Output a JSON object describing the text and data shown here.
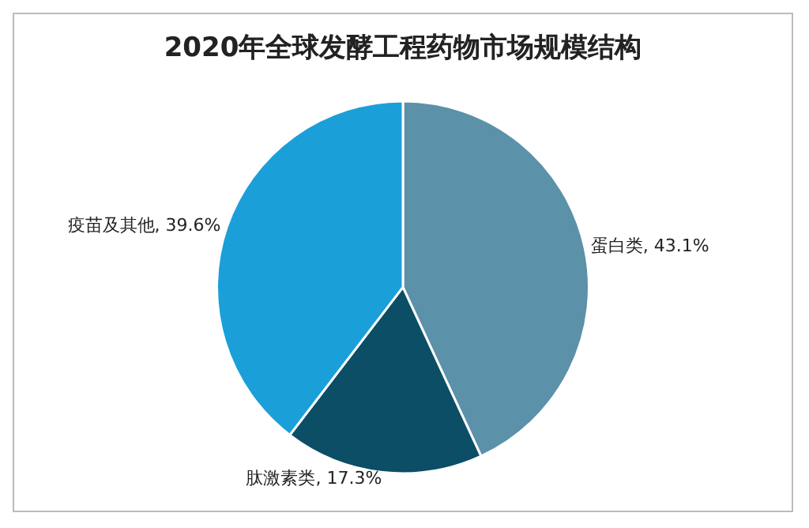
{
  "chart_data": {
    "type": "pie",
    "title": "2020年全球发酵工程药物市场规模结构",
    "categories": [
      "蛋白类",
      "肽激素类",
      "疫苗及其他"
    ],
    "values": [
      43.1,
      17.3,
      39.6
    ],
    "value_labels": [
      "43.1%",
      "17.3%",
      "39.6%"
    ],
    "colors": [
      "#5b91a9",
      "#0b4e66",
      "#1b9fd9"
    ],
    "legend": false
  }
}
